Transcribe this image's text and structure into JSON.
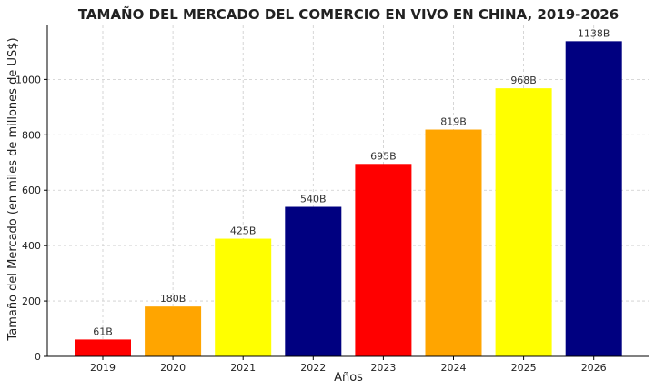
{
  "chart_data": {
    "type": "bar",
    "title": "TAMAÑO DEL MERCADO DEL COMERCIO EN VIVO EN CHINA, 2019-2026",
    "xlabel": "Años",
    "ylabel": "Tamaño del Mercado (en miles de millones de US$)",
    "categories": [
      "2019",
      "2020",
      "2021",
      "2022",
      "2023",
      "2024",
      "2025",
      "2026"
    ],
    "values": [
      61,
      180,
      425,
      540,
      695,
      819,
      968,
      1138
    ],
    "data_labels": [
      "61B",
      "180B",
      "425B",
      "540B",
      "695B",
      "819B",
      "968B",
      "1138B"
    ],
    "bar_colors": [
      "#ff0000",
      "#ffa500",
      "#ffff00",
      "#000080",
      "#ff0000",
      "#ffa500",
      "#ffff00",
      "#000080"
    ],
    "ylim": [
      0,
      1195
    ],
    "yticks": [
      0,
      200,
      400,
      600,
      800,
      1000
    ],
    "grid": true
  }
}
